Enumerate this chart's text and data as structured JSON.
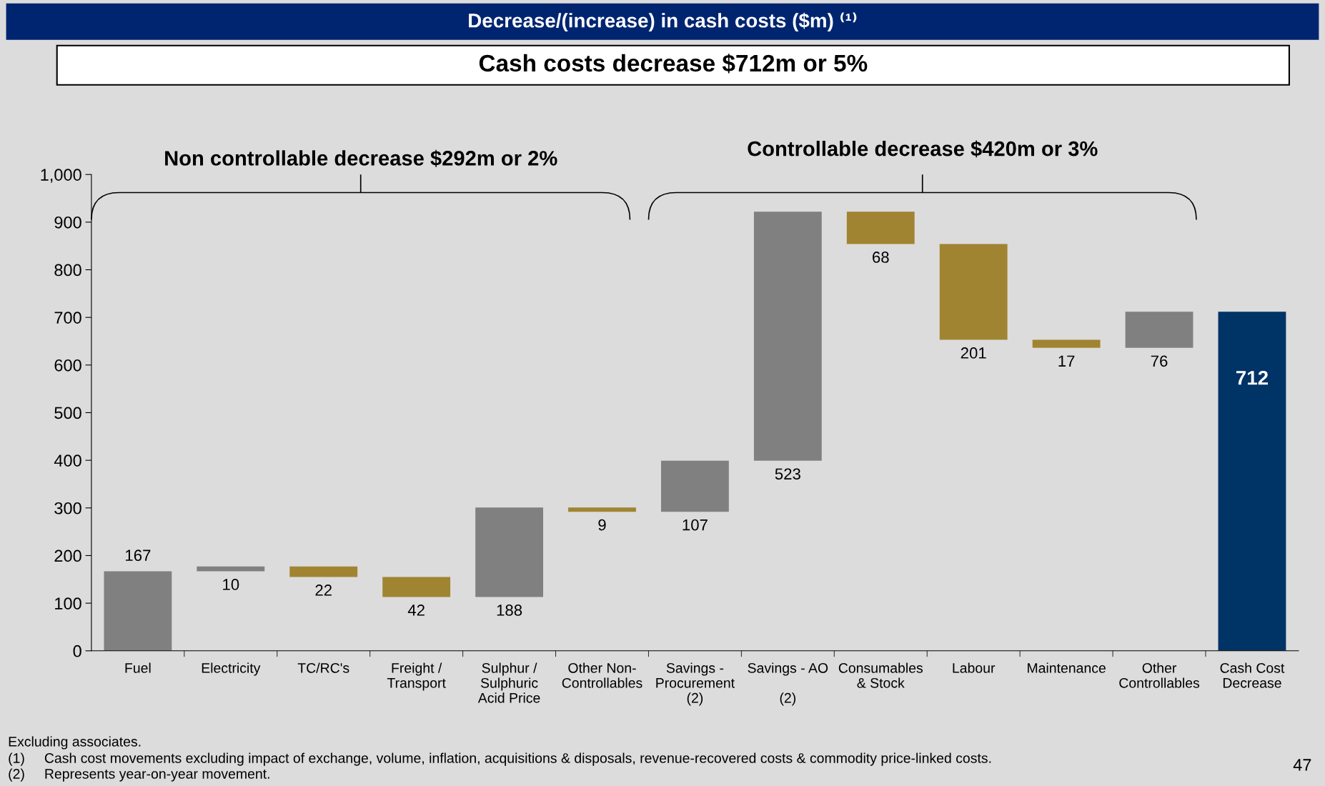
{
  "chart_data": {
    "type": "bar",
    "title": "Decrease/(increase) in cash costs ($m) ⁽¹⁾",
    "subtitle": "Cash costs decrease $712m or 5%",
    "categories": [
      "Fuel",
      "Electricity",
      "TC/RC's",
      "Freight /\nTransport",
      "Sulphur /\nSulphuric\nAcid Price",
      "Other Non-\nControllables",
      "Savings -\nProcurement\n(2)",
      "Savings - AO\n\n(2)",
      "Consumables\n& Stock",
      "Labour",
      "Maintenance",
      "Other\nControllables",
      "Cash Cost\nDecrease"
    ],
    "values": [
      167,
      10,
      22,
      42,
      188,
      9,
      107,
      523,
      68,
      201,
      17,
      76,
      712
    ],
    "base": [
      0,
      167,
      155,
      113,
      113,
      292,
      292,
      399,
      854,
      653,
      636,
      636,
      0
    ],
    "colors": [
      "#808080",
      "#808080",
      "#a08432",
      "#a08432",
      "#808080",
      "#a08432",
      "#808080",
      "#808080",
      "#a08432",
      "#a08432",
      "#a08432",
      "#808080",
      "#003366"
    ],
    "ylim": [
      0,
      1000
    ],
    "yticks": [
      0,
      {
        "value": 100,
        "label": "100"
      },
      200,
      300,
      400,
      500,
      600,
      700,
      800,
      900,
      {
        "value": 1000,
        "label": "1,000"
      }
    ],
    "data_labels": true,
    "annotations": [
      "Non controllable decrease $292m or 2%",
      "Controllable decrease $420m or 3%",
      "Excluding associates.",
      "(1)     Cash cost movements excluding impact of exchange, volume, inflation, acquisitions & disposals, revenue-recovered costs & commodity price-linked costs.",
      "(2)     Represents year-on-year movement.",
      "47"
    ]
  }
}
